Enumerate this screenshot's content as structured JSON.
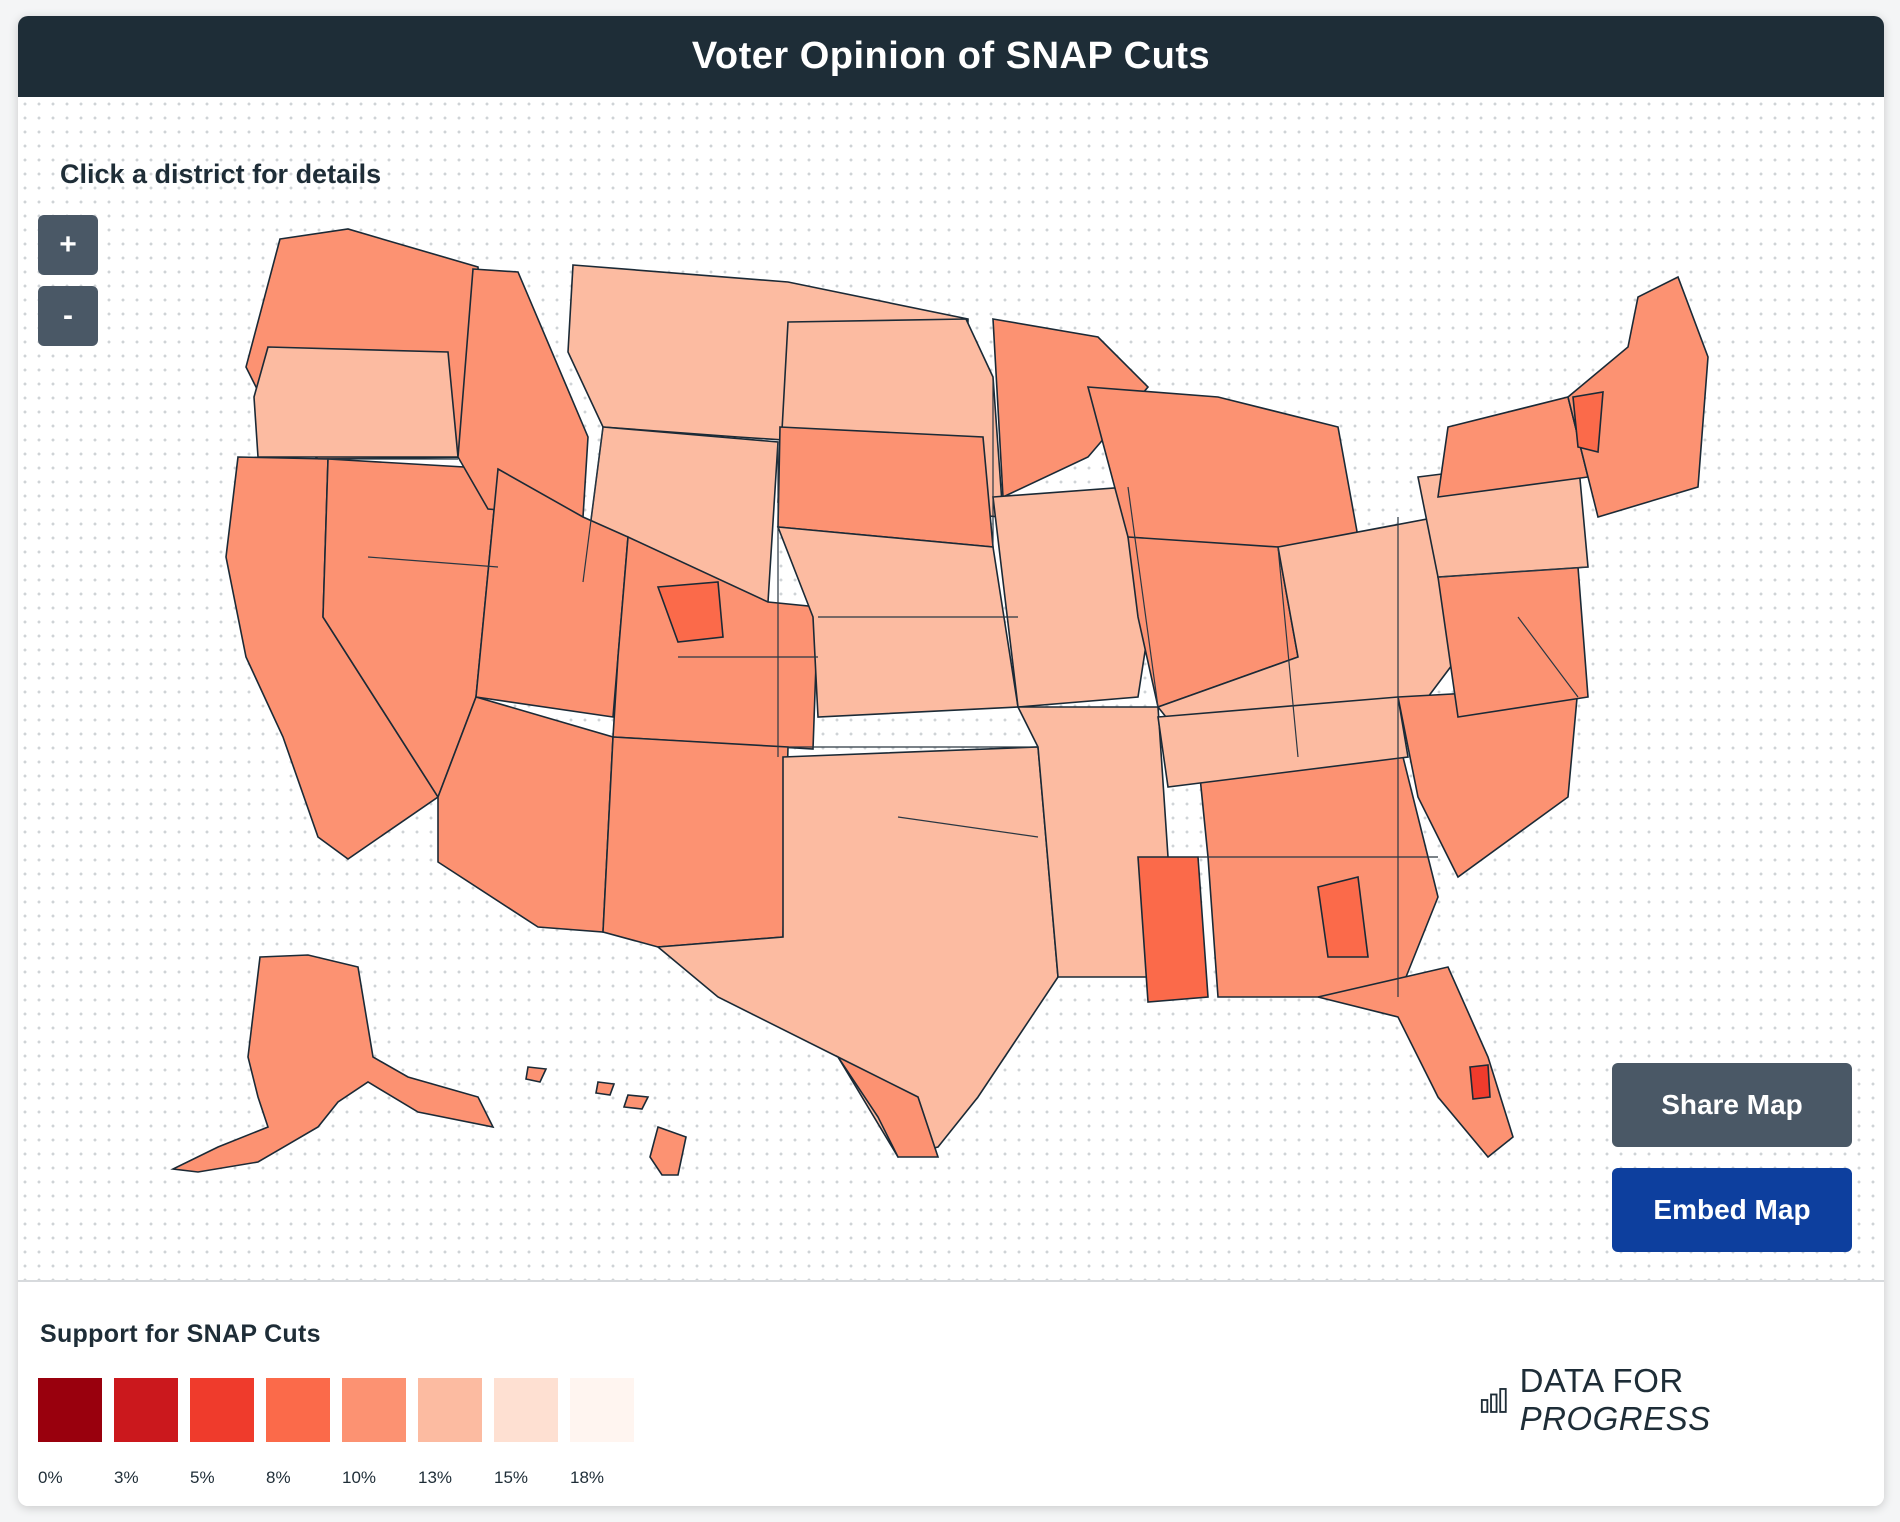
{
  "header": {
    "title": "Voter Opinion of SNAP Cuts"
  },
  "map": {
    "hint": "Click a district for details"
  },
  "controls": {
    "zoom_in": "+",
    "zoom_out": "-"
  },
  "actions": {
    "share_label": "Share Map",
    "embed_label": "Embed Map"
  },
  "legend": {
    "title": "Support for SNAP Cuts",
    "bins": [
      {
        "label": "0%",
        "color": "#99000d"
      },
      {
        "label": "3%",
        "color": "#cb181d"
      },
      {
        "label": "5%",
        "color": "#ef3b2c"
      },
      {
        "label": "8%",
        "color": "#fb6a4a"
      },
      {
        "label": "10%",
        "color": "#fc9272"
      },
      {
        "label": "13%",
        "color": "#fcbba1"
      },
      {
        "label": "15%",
        "color": "#fee0d2"
      },
      {
        "label": "18%",
        "color": "#fff5f0"
      }
    ]
  },
  "brand": {
    "prefix": "DATA FOR ",
    "emphasis": "PROGRESS"
  },
  "colors": {
    "header_bg": "#1e2d37",
    "zoom_button": "#4a5866",
    "share_button": "#4a5866",
    "embed_button": "#0d3f9e",
    "map_border": "#1b2a36"
  }
}
